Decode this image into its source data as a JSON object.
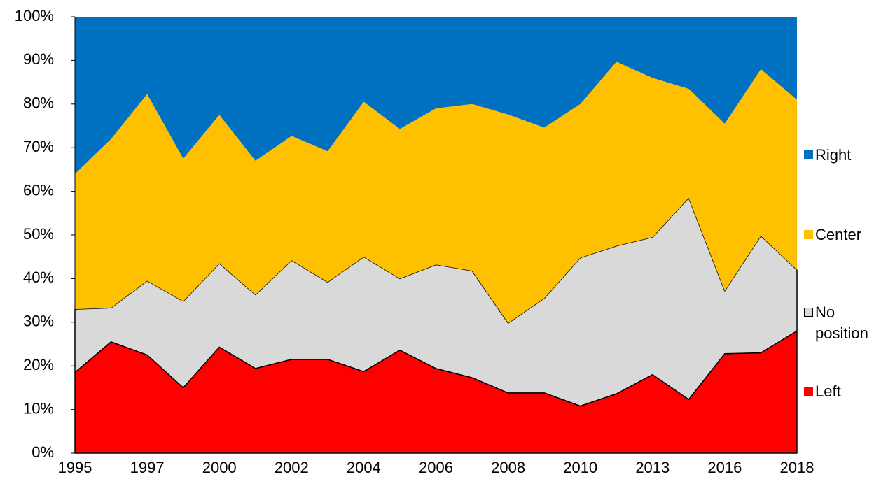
{
  "chart_data": {
    "type": "stacked-area",
    "categories": [
      "1995",
      null,
      "1997",
      null,
      "2000",
      null,
      "2002",
      null,
      "2004",
      null,
      "2006",
      null,
      "2008",
      null,
      "2010",
      null,
      "2013",
      null,
      "2016",
      null,
      "2018"
    ],
    "series": [
      {
        "name": "Left",
        "color": "#ff0000",
        "edgecolor": "#000000",
        "values": [
          18.5,
          25.5,
          22.5,
          15,
          24.3,
          19.4,
          21.5,
          21.5,
          18.7,
          23.6,
          19.4,
          17.3,
          13.8,
          13.8,
          10.8,
          13.6,
          18,
          12.3,
          22.8,
          23,
          28
        ]
      },
      {
        "name": "No position",
        "color": "#d9d9d9",
        "edgecolor": "#000000",
        "values": [
          14.5,
          7.8,
          17,
          19.8,
          19.2,
          16.9,
          22.7,
          17.7,
          26.3,
          16.4,
          23.8,
          24.5,
          16,
          21.7,
          34,
          33.9,
          31.5,
          46.2,
          14.4,
          26.8,
          14
        ]
      },
      {
        "name": "Center",
        "color": "#ffc000",
        "values": [
          31,
          38.7,
          42.8,
          32.7,
          34,
          30.7,
          28.5,
          30,
          35.5,
          34.3,
          35.8,
          38.2,
          47.8,
          39.1,
          35.2,
          42.2,
          36.5,
          25,
          38.3,
          38.2,
          39
        ]
      },
      {
        "name": "Right",
        "color": "#0070c0",
        "values": [
          36,
          28,
          17.7,
          32.5,
          22.5,
          33,
          27.3,
          30.8,
          19.5,
          25.7,
          21,
          20,
          22.4,
          25.4,
          20,
          10.3,
          14,
          16.5,
          24.5,
          12,
          19
        ]
      }
    ],
    "ylim": [
      0,
      100
    ],
    "yticks": [
      {
        "value": 0,
        "label": "0%"
      },
      {
        "value": 10,
        "label": "10%"
      },
      {
        "value": 20,
        "label": "20%"
      },
      {
        "value": 30,
        "label": "30%"
      },
      {
        "value": 40,
        "label": "40%"
      },
      {
        "value": 50,
        "label": "50%"
      },
      {
        "value": 60,
        "label": "60%"
      },
      {
        "value": 70,
        "label": "70%"
      },
      {
        "value": 80,
        "label": "80%"
      },
      {
        "value": 90,
        "label": "90%"
      },
      {
        "value": 100,
        "label": "100%"
      }
    ],
    "legend": "right"
  }
}
